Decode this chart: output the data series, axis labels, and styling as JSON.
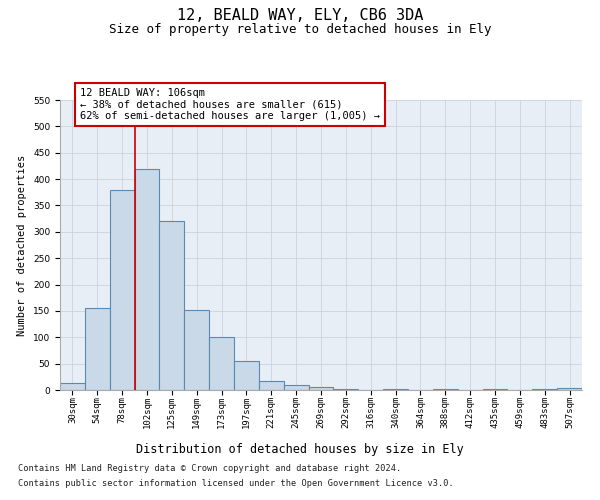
{
  "title": "12, BEALD WAY, ELY, CB6 3DA",
  "subtitle": "Size of property relative to detached houses in Ely",
  "xlabel": "Distribution of detached houses by size in Ely",
  "ylabel": "Number of detached properties",
  "categories": [
    "30sqm",
    "54sqm",
    "78sqm",
    "102sqm",
    "125sqm",
    "149sqm",
    "173sqm",
    "197sqm",
    "221sqm",
    "245sqm",
    "269sqm",
    "292sqm",
    "316sqm",
    "340sqm",
    "364sqm",
    "388sqm",
    "412sqm",
    "435sqm",
    "459sqm",
    "483sqm",
    "507sqm"
  ],
  "bar_heights": [
    13,
    155,
    380,
    420,
    320,
    152,
    100,
    55,
    18,
    10,
    5,
    2,
    0,
    2,
    0,
    2,
    0,
    2,
    0,
    2,
    3
  ],
  "bar_color": "#c9d9e8",
  "bar_edgecolor": "#5a8ab0",
  "bar_linewidth": 0.8,
  "vline_x": 2.5,
  "vline_color": "#cc0000",
  "vline_linewidth": 1.2,
  "annotation_text": "12 BEALD WAY: 106sqm\n← 38% of detached houses are smaller (615)\n62% of semi-detached houses are larger (1,005) →",
  "annotation_box_facecolor": "#ffffff",
  "annotation_box_edgecolor": "#cc0000",
  "ylim": [
    0,
    550
  ],
  "yticks": [
    0,
    50,
    100,
    150,
    200,
    250,
    300,
    350,
    400,
    450,
    500,
    550
  ],
  "grid_color": "#c8d4e0",
  "bg_color": "#e8eef5",
  "footer_line1": "Contains HM Land Registry data © Crown copyright and database right 2024.",
  "footer_line2": "Contains public sector information licensed under the Open Government Licence v3.0.",
  "title_fontsize": 11,
  "subtitle_fontsize": 9,
  "tick_fontsize": 6.5,
  "ylabel_fontsize": 7.5,
  "xlabel_fontsize": 8.5,
  "footer_fontsize": 6.2,
  "annotation_fontsize": 7.5
}
